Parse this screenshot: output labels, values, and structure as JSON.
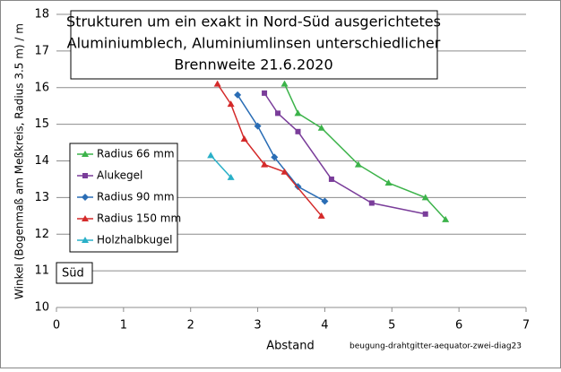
{
  "chart_data": {
    "type": "line",
    "title": [
      "Strukturen um ein exakt in Nord-Süd ausgerichtetes",
      "Aluminiumblech, Aluminiumlinsen unterschiedlicher",
      "Brennweite 21.6.2020"
    ],
    "xlabel": "Abstand",
    "ylabel": "Winkel (Bogenmaß am Meßkreis, Radius 3.5 m) / m",
    "annotations": [
      "Süd",
      "beugung-drahtgitter-aequator-zwei-diag23"
    ],
    "xlim": [
      0,
      7
    ],
    "xticks": [
      0,
      1,
      2,
      3,
      4,
      5,
      6,
      7
    ],
    "ylim": [
      10,
      18
    ],
    "yticks": [
      10,
      11,
      12,
      13,
      14,
      15,
      16,
      17,
      18
    ],
    "grid": true,
    "legend": "left",
    "series": [
      {
        "name": "Radius 66 mm",
        "color": "#3cb34a",
        "marker": "triangle",
        "x": [
          3.4,
          3.6,
          3.95,
          4.5,
          4.95,
          5.5,
          5.8
        ],
        "values": [
          16.1,
          15.3,
          14.9,
          13.9,
          13.4,
          13.0,
          12.4
        ]
      },
      {
        "name": "Alukegel",
        "color": "#7a3d9a",
        "marker": "square",
        "x": [
          3.1,
          3.3,
          3.6,
          4.1,
          4.7,
          5.5
        ],
        "values": [
          15.85,
          15.3,
          14.8,
          13.5,
          12.85,
          12.55
        ]
      },
      {
        "name": "Radius 90 mm",
        "color": "#2a6db5",
        "marker": "diamond",
        "x": [
          2.7,
          3.0,
          3.25,
          3.6,
          4.0
        ],
        "values": [
          15.8,
          14.95,
          14.1,
          13.3,
          12.9
        ]
      },
      {
        "name": "Radius 150 mm",
        "color": "#d42a2a",
        "marker": "triangle",
        "x": [
          2.4,
          2.6,
          2.8,
          3.1,
          3.4,
          3.95
        ],
        "values": [
          16.1,
          15.55,
          14.6,
          13.9,
          13.7,
          12.5
        ]
      },
      {
        "name": "Holzhalbkugel",
        "color": "#2ab0c8",
        "marker": "triangle",
        "x": [
          2.3,
          2.6
        ],
        "values": [
          14.15,
          13.55
        ]
      }
    ]
  }
}
